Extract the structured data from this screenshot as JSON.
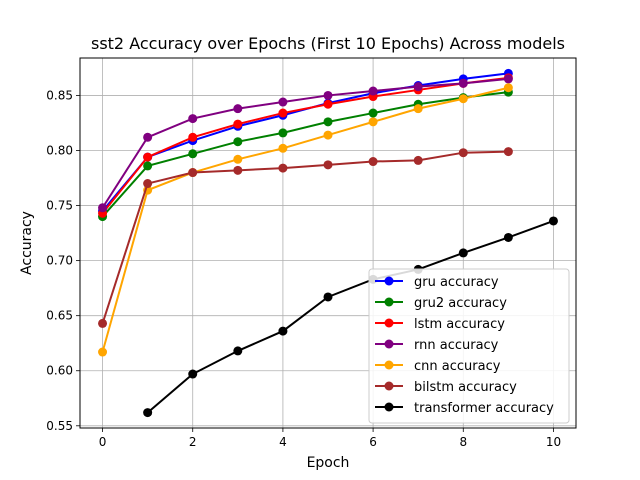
{
  "chart_data": {
    "type": "line",
    "title": "sst2 Accuracy over Epochs (First 10 Epochs) Across models",
    "xlabel": "Epoch",
    "ylabel": "Accuracy",
    "xlim": [
      -0.5,
      10.5
    ],
    "ylim": [
      0.548,
      0.884
    ],
    "xticks": [
      0,
      2,
      4,
      6,
      8,
      10
    ],
    "yticks": [
      0.55,
      0.6,
      0.65,
      0.7,
      0.75,
      0.8,
      0.85
    ],
    "xtick_labels": [
      "0",
      "2",
      "4",
      "6",
      "8",
      "10"
    ],
    "ytick_labels": [
      "0.55",
      "0.60",
      "0.65",
      "0.70",
      "0.75",
      "0.80",
      "0.85"
    ],
    "grid": true,
    "legend_position": "lower-right",
    "series": [
      {
        "name": "gru accuracy",
        "color": "#0000ff",
        "x": [
          0,
          1,
          2,
          3,
          4,
          5,
          6,
          7,
          8,
          9
        ],
        "values": [
          0.745,
          0.794,
          0.809,
          0.822,
          0.832,
          0.843,
          0.852,
          0.859,
          0.865,
          0.87
        ]
      },
      {
        "name": "gru2 accuracy",
        "color": "#008000",
        "x": [
          0,
          1,
          2,
          3,
          4,
          5,
          6,
          7,
          8,
          9
        ],
        "values": [
          0.74,
          0.786,
          0.797,
          0.808,
          0.816,
          0.826,
          0.834,
          0.842,
          0.848,
          0.853
        ]
      },
      {
        "name": "lstm accuracy",
        "color": "#ff0000",
        "x": [
          0,
          1,
          2,
          3,
          4,
          5,
          6,
          7,
          8,
          9
        ],
        "values": [
          0.743,
          0.794,
          0.812,
          0.824,
          0.834,
          0.842,
          0.849,
          0.855,
          0.861,
          0.866
        ]
      },
      {
        "name": "rnn accuracy",
        "color": "#800080",
        "x": [
          0,
          1,
          2,
          3,
          4,
          5,
          6,
          7,
          8,
          9
        ],
        "values": [
          0.748,
          0.812,
          0.829,
          0.838,
          0.844,
          0.85,
          0.854,
          0.858,
          0.861,
          0.865
        ]
      },
      {
        "name": "cnn accuracy",
        "color": "#ffa500",
        "x": [
          0,
          1,
          2,
          3,
          4,
          5,
          6,
          7,
          8,
          9
        ],
        "values": [
          0.617,
          0.764,
          0.78,
          0.792,
          0.802,
          0.814,
          0.826,
          0.838,
          0.847,
          0.857
        ]
      },
      {
        "name": "bilstm accuracy",
        "color": "#a52a2a",
        "x": [
          0,
          1,
          2,
          3,
          4,
          5,
          6,
          7,
          8,
          9
        ],
        "values": [
          0.643,
          0.77,
          0.78,
          0.782,
          0.784,
          0.787,
          0.79,
          0.791,
          0.798,
          0.799
        ]
      },
      {
        "name": "transformer accuracy",
        "color": "#000000",
        "x": [
          1,
          2,
          3,
          4,
          5,
          6,
          7,
          8,
          9,
          10
        ],
        "values": [
          0.562,
          0.597,
          0.618,
          0.636,
          0.667,
          0.683,
          0.692,
          0.707,
          0.721,
          0.736
        ]
      }
    ]
  }
}
